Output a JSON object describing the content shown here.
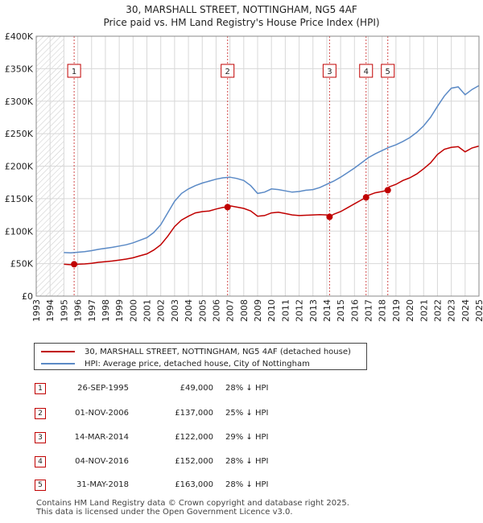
{
  "chart_data": {
    "type": "line",
    "title": "30, MARSHALL STREET, NOTTINGHAM, NG5 4AF",
    "subtitle": "Price paid vs. HM Land Registry's House Price Index (HPI)",
    "xlabel": "",
    "ylabel": "",
    "xlim": [
      1993,
      2025
    ],
    "ylim": [
      0,
      400000
    ],
    "y_ticks": [
      0,
      50000,
      100000,
      150000,
      200000,
      250000,
      300000,
      350000,
      400000
    ],
    "y_tick_labels": [
      "£0",
      "£50K",
      "£100K",
      "£150K",
      "£200K",
      "£250K",
      "£300K",
      "£350K",
      "£400K"
    ],
    "x_ticks": [
      1993,
      1994,
      1995,
      1996,
      1997,
      1998,
      1999,
      2000,
      2001,
      2002,
      2003,
      2004,
      2005,
      2006,
      2007,
      2008,
      2009,
      2010,
      2011,
      2012,
      2013,
      2014,
      2015,
      2016,
      2017,
      2018,
      2019,
      2020,
      2021,
      2022,
      2023,
      2024,
      2025
    ],
    "hatch_until": 1995.0,
    "grid": true,
    "series": [
      {
        "name": "30, MARSHALL STREET, NOTTINGHAM, NG5 4AF (detached house)",
        "color": "#c00000",
        "x": [
          1995.0,
          1995.74,
          1996.0,
          1996.5,
          1997.0,
          1997.5,
          1998.0,
          1998.5,
          1999.0,
          1999.5,
          2000.0,
          2000.5,
          2001.0,
          2001.5,
          2002.0,
          2002.5,
          2003.0,
          2003.5,
          2004.0,
          2004.5,
          2005.0,
          2005.5,
          2006.0,
          2006.5,
          2006.83,
          2007.0,
          2007.5,
          2008.0,
          2008.5,
          2009.0,
          2009.5,
          2010.0,
          2010.5,
          2011.0,
          2011.5,
          2012.0,
          2012.5,
          2013.0,
          2013.5,
          2014.0,
          2014.2,
          2014.5,
          2015.0,
          2015.5,
          2016.0,
          2016.5,
          2016.84,
          2017.0,
          2017.5,
          2018.0,
          2018.41,
          2018.5,
          2019.0,
          2019.5,
          2020.0,
          2020.5,
          2021.0,
          2021.5,
          2022.0,
          2022.5,
          2023.0,
          2023.5,
          2024.0,
          2024.5,
          2025.0
        ],
        "values": [
          49000,
          48000,
          49000,
          49500,
          50500,
          52000,
          53000,
          54000,
          55500,
          57000,
          59000,
          62000,
          65000,
          71000,
          79000,
          92000,
          107000,
          117000,
          123000,
          128000,
          130000,
          131000,
          134000,
          136500,
          137000,
          139000,
          137000,
          135000,
          131000,
          123000,
          124000,
          128000,
          129000,
          127000,
          125000,
          124000,
          124500,
          125000,
          125500,
          125000,
          122000,
          126000,
          130000,
          136000,
          142000,
          148000,
          152000,
          155000,
          159000,
          161000,
          163000,
          168000,
          172000,
          178000,
          182000,
          188000,
          196000,
          205000,
          218000,
          226000,
          229000,
          230000,
          222000,
          228000,
          231000
        ]
      },
      {
        "name": "HPI: Average price, detached house, City of Nottingham",
        "color": "#5b8ac6",
        "x": [
          1995.0,
          1995.5,
          1996.0,
          1996.5,
          1997.0,
          1997.5,
          1998.0,
          1998.5,
          1999.0,
          1999.5,
          2000.0,
          2000.5,
          2001.0,
          2001.5,
          2002.0,
          2002.5,
          2003.0,
          2003.5,
          2004.0,
          2004.5,
          2005.0,
          2005.5,
          2006.0,
          2006.5,
          2007.0,
          2007.5,
          2008.0,
          2008.5,
          2009.0,
          2009.5,
          2010.0,
          2010.5,
          2011.0,
          2011.5,
          2012.0,
          2012.5,
          2013.0,
          2013.5,
          2014.0,
          2014.5,
          2015.0,
          2015.5,
          2016.0,
          2016.5,
          2017.0,
          2017.5,
          2018.0,
          2018.5,
          2019.0,
          2019.5,
          2020.0,
          2020.5,
          2021.0,
          2021.5,
          2022.0,
          2022.5,
          2023.0,
          2023.5,
          2024.0,
          2024.5,
          2025.0
        ],
        "values": [
          67000,
          66500,
          67500,
          68500,
          70000,
          72000,
          73500,
          75000,
          77000,
          79000,
          82000,
          86000,
          90000,
          98000,
          110000,
          128000,
          146000,
          158000,
          165000,
          170000,
          174000,
          177000,
          180000,
          182000,
          183000,
          181000,
          178000,
          170000,
          158000,
          160000,
          165000,
          164000,
          162000,
          160000,
          161000,
          163000,
          164000,
          167000,
          172000,
          177000,
          183000,
          190000,
          197000,
          205000,
          213000,
          219000,
          224000,
          229000,
          233000,
          238000,
          244000,
          252000,
          262000,
          275000,
          292000,
          308000,
          320000,
          322000,
          310000,
          318000,
          324000
        ]
      }
    ],
    "sales": [
      {
        "label": "1",
        "x": 1995.74,
        "value": 49000
      },
      {
        "label": "2",
        "x": 2006.83,
        "value": 137000
      },
      {
        "label": "3",
        "x": 2014.2,
        "value": 122000
      },
      {
        "label": "4",
        "x": 2016.84,
        "value": 152000
      },
      {
        "label": "5",
        "x": 2018.41,
        "value": 163000
      }
    ]
  },
  "legend": {
    "property_label": "30, MARSHALL STREET, NOTTINGHAM, NG5 4AF (detached house)",
    "hpi_label": "HPI: Average price, detached house, City of Nottingham"
  },
  "sales_table": [
    {
      "num": "1",
      "date": "26-SEP-1995",
      "price": "£49,000",
      "hpi": "28% ↓ HPI"
    },
    {
      "num": "2",
      "date": "01-NOV-2006",
      "price": "£137,000",
      "hpi": "25% ↓ HPI"
    },
    {
      "num": "3",
      "date": "14-MAR-2014",
      "price": "£122,000",
      "hpi": "29% ↓ HPI"
    },
    {
      "num": "4",
      "date": "04-NOV-2016",
      "price": "£152,000",
      "hpi": "28% ↓ HPI"
    },
    {
      "num": "5",
      "date": "31-MAY-2018",
      "price": "£163,000",
      "hpi": "28% ↓ HPI"
    }
  ],
  "footer": {
    "line1": "Contains HM Land Registry data © Crown copyright and database right 2025.",
    "line2": "This data is licensed under the Open Government Licence v3.0."
  },
  "colors": {
    "property": "#c00000",
    "hpi": "#5b8ac6",
    "grid": "#d8d8d8"
  }
}
